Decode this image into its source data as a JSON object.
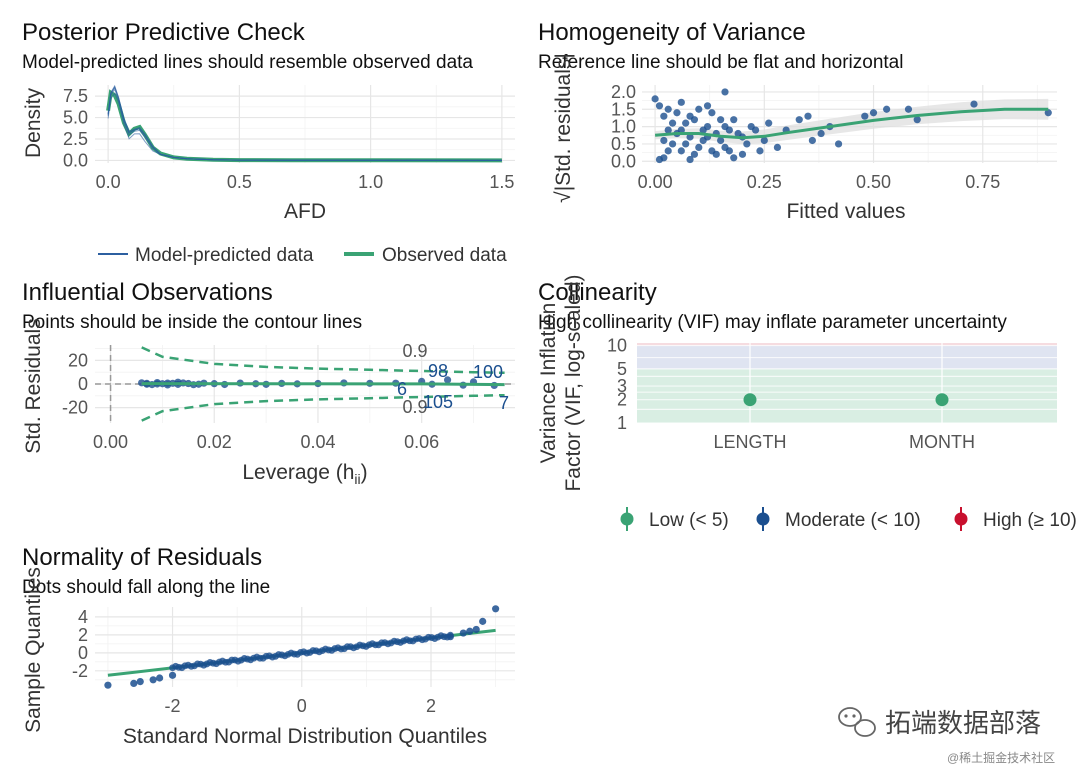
{
  "colors": {
    "green": "#3aa374",
    "blue": "#2c5fa0",
    "dark_blue": "#1b4f8f",
    "red": "#c8102e",
    "low_fill": "#d9eee3",
    "mod_fill": "#dfe4f1",
    "high_fill": "#f6dce0"
  },
  "panels": {
    "ppc": {
      "title": "Posterior Predictive Check",
      "subtitle": "Model-predicted lines should resemble observed data",
      "xlabel": "AFD",
      "ylabel": "Density",
      "xticks": [
        "0.0",
        "0.5",
        "1.0",
        "1.5"
      ],
      "yticks": [
        "0.0",
        "2.5",
        "5.0",
        "7.5"
      ],
      "legend": [
        "Model-predicted data",
        "Observed data"
      ]
    },
    "hov": {
      "title": "Homogeneity of Variance",
      "subtitle": "Reference line should be flat and horizontal",
      "xlabel": "Fitted values",
      "ylabel": "√|Std. residuals|",
      "xticks": [
        "0.00",
        "0.25",
        "0.50",
        "0.75"
      ],
      "yticks": [
        "0.0",
        "0.5",
        "1.0",
        "1.5",
        "2.0"
      ]
    },
    "infl": {
      "title": "Influential Observations",
      "subtitle": "Points should be inside the contour lines",
      "xlabel": "Leverage (hii)",
      "xlabel_main": "Leverage (h",
      "xlabel_sub": "ii",
      "xlabel_close": ")",
      "ylabel": "Std. Residuals",
      "xticks": [
        "0.00",
        "0.02",
        "0.04",
        "0.06"
      ],
      "yticks": [
        "-20",
        "0",
        "20"
      ],
      "contour_label_top": "0.9",
      "contour_label_bottom": "0.9",
      "point_labels": [
        "98",
        "100",
        "6",
        "105",
        "7"
      ]
    },
    "coll": {
      "title": "Collinearity",
      "subtitle": "High collinearity (VIF) may inflate parameter uncertainty",
      "ylabel_line1": "Variance Inflation",
      "ylabel_line2": "Factor (VIF, log-scaled)",
      "xticks": [
        "LENGTH",
        "MONTH"
      ],
      "yticks": [
        "1",
        "2",
        "3",
        "5",
        "10"
      ],
      "legend": [
        "Low (< 5)",
        "Moderate (< 10)",
        "High (≥ 10)"
      ]
    },
    "norm": {
      "title": "Normality of Residuals",
      "subtitle": "Dots should fall along the line",
      "xlabel": "Standard Normal Distribution Quantiles",
      "ylabel": "Sample Quantiles",
      "xticks": [
        "-2",
        "0",
        "2"
      ],
      "yticks": [
        "-2",
        "0",
        "2",
        "4"
      ]
    }
  },
  "watermark": {
    "main": "拓端数据部落",
    "sub": "@稀土掘金技术社区"
  },
  "chart_data": [
    {
      "type": "line",
      "title": "Posterior Predictive Check",
      "xlabel": "AFD",
      "ylabel": "Density",
      "xlim": [
        -0.05,
        1.55
      ],
      "ylim": [
        -0.3,
        8.8
      ],
      "series": [
        {
          "name": "Model-predicted data",
          "x": [
            0.0,
            0.01,
            0.025,
            0.04,
            0.06,
            0.08,
            0.1,
            0.12,
            0.14,
            0.17,
            0.2,
            0.25,
            0.3,
            0.4,
            0.5,
            0.7,
            1.0,
            1.5
          ],
          "y": [
            5.2,
            7.6,
            8.3,
            7.1,
            4.6,
            3.0,
            3.4,
            3.5,
            2.7,
            1.4,
            0.7,
            0.35,
            0.2,
            0.08,
            0.04,
            0.02,
            0.01,
            0.0
          ]
        },
        {
          "name": "Observed data",
          "x": [
            0.0,
            0.01,
            0.025,
            0.04,
            0.06,
            0.08,
            0.1,
            0.12,
            0.14,
            0.17,
            0.2,
            0.25,
            0.3,
            0.4,
            0.5,
            0.7,
            1.0,
            1.5
          ],
          "y": [
            5.8,
            7.9,
            7.6,
            6.6,
            4.4,
            3.1,
            3.7,
            3.9,
            3.0,
            1.5,
            0.8,
            0.35,
            0.2,
            0.08,
            0.04,
            0.02,
            0.01,
            0.0
          ]
        }
      ]
    },
    {
      "type": "scatter",
      "title": "Homogeneity of Variance",
      "xlabel": "Fitted values",
      "ylabel": "√|Std. residuals|",
      "xlim": [
        -0.03,
        0.92
      ],
      "ylim": [
        -0.05,
        2.2
      ],
      "points": [
        [
          0.0,
          1.8
        ],
        [
          0.01,
          1.6
        ],
        [
          0.02,
          1.3
        ],
        [
          0.02,
          0.1
        ],
        [
          0.03,
          0.9
        ],
        [
          0.04,
          0.5
        ],
        [
          0.05,
          1.4
        ],
        [
          0.06,
          0.3
        ],
        [
          0.07,
          1.1
        ],
        [
          0.08,
          0.7
        ],
        [
          0.09,
          0.2
        ],
        [
          0.1,
          1.5
        ],
        [
          0.11,
          0.6
        ],
        [
          0.12,
          1.0
        ],
        [
          0.13,
          0.3
        ],
        [
          0.14,
          0.8
        ],
        [
          0.15,
          1.2
        ],
        [
          0.16,
          0.4
        ],
        [
          0.17,
          0.9
        ],
        [
          0.18,
          0.1
        ],
        [
          0.02,
          0.6
        ],
        [
          0.04,
          1.1
        ],
        [
          0.06,
          0.9
        ],
        [
          0.08,
          1.3
        ],
        [
          0.1,
          0.4
        ],
        [
          0.12,
          0.7
        ],
        [
          0.14,
          0.2
        ],
        [
          0.16,
          1.0
        ],
        [
          0.03,
          0.3
        ],
        [
          0.05,
          0.8
        ],
        [
          0.07,
          0.5
        ],
        [
          0.09,
          1.2
        ],
        [
          0.11,
          0.9
        ],
        [
          0.13,
          1.4
        ],
        [
          0.15,
          0.6
        ],
        [
          0.17,
          0.3
        ],
        [
          0.19,
          0.8
        ],
        [
          0.2,
          0.7
        ],
        [
          0.21,
          0.5
        ],
        [
          0.22,
          1.0
        ],
        [
          0.24,
          0.3
        ],
        [
          0.26,
          1.1
        ],
        [
          0.28,
          0.4
        ],
        [
          0.3,
          0.9
        ],
        [
          0.33,
          1.2
        ],
        [
          0.35,
          1.3
        ],
        [
          0.36,
          0.6
        ],
        [
          0.38,
          0.8
        ],
        [
          0.4,
          1.0
        ],
        [
          0.42,
          0.5
        ],
        [
          0.48,
          1.3
        ],
        [
          0.5,
          1.4
        ],
        [
          0.53,
          1.5
        ],
        [
          0.58,
          1.5
        ],
        [
          0.6,
          1.2
        ],
        [
          0.73,
          1.65
        ],
        [
          0.9,
          1.4
        ],
        [
          0.16,
          2.0
        ],
        [
          0.01,
          0.05
        ],
        [
          0.03,
          1.5
        ],
        [
          0.06,
          1.7
        ],
        [
          0.08,
          0.05
        ],
        [
          0.12,
          1.6
        ],
        [
          0.18,
          1.2
        ],
        [
          0.2,
          0.2
        ],
        [
          0.23,
          0.9
        ],
        [
          0.25,
          0.6
        ]
      ],
      "smooth": {
        "x": [
          0.0,
          0.05,
          0.1,
          0.15,
          0.2,
          0.25,
          0.3,
          0.4,
          0.5,
          0.6,
          0.7,
          0.8,
          0.9
        ],
        "y": [
          0.75,
          0.8,
          0.8,
          0.72,
          0.68,
          0.72,
          0.82,
          1.0,
          1.18,
          1.32,
          1.43,
          1.5,
          1.5
        ]
      }
    },
    {
      "type": "scatter",
      "title": "Influential Observations",
      "xlabel": "Leverage (hii)",
      "ylabel": "Std. Residuals",
      "xlim": [
        -0.003,
        0.078
      ],
      "ylim": [
        -33,
        33
      ],
      "points": [
        [
          0.006,
          1.0
        ],
        [
          0.007,
          0.5
        ],
        [
          0.008,
          -0.5
        ],
        [
          0.009,
          1.2
        ],
        [
          0.01,
          0.2
        ],
        [
          0.011,
          -0.8
        ],
        [
          0.012,
          0.6
        ],
        [
          0.013,
          -0.3
        ],
        [
          0.014,
          0.9
        ],
        [
          0.015,
          0.4
        ],
        [
          0.016,
          -0.6
        ],
        [
          0.018,
          0.7
        ],
        [
          0.02,
          0.3
        ],
        [
          0.022,
          -0.4
        ],
        [
          0.025,
          0.8
        ],
        [
          0.028,
          0.2
        ],
        [
          0.03,
          -0.3
        ],
        [
          0.033,
          0.5
        ],
        [
          0.036,
          0.1
        ],
        [
          0.04,
          0.4
        ],
        [
          0.045,
          0.9
        ],
        [
          0.05,
          0.6
        ],
        [
          0.055,
          0.7
        ],
        [
          0.06,
          2.2
        ],
        [
          0.062,
          -0.2
        ],
        [
          0.065,
          3.5
        ],
        [
          0.068,
          -1.0
        ],
        [
          0.07,
          1.8
        ],
        [
          0.074,
          -1.2
        ],
        [
          0.007,
          -0.2
        ],
        [
          0.009,
          0.0
        ],
        [
          0.011,
          0.8
        ],
        [
          0.013,
          1.5
        ],
        [
          0.017,
          -0.2
        ]
      ],
      "labeled_points": [
        {
          "label": "98",
          "x": 0.063,
          "y": 3.4
        },
        {
          "label": "100",
          "x": 0.069,
          "y": 3.8
        },
        {
          "label": "6",
          "x": 0.061,
          "y": -2.4
        },
        {
          "label": "105",
          "x": 0.064,
          "y": -6.5
        },
        {
          "label": "7",
          "x": 0.074,
          "y": -7.0
        }
      ],
      "contour": {
        "x": [
          0.006,
          0.01,
          0.02,
          0.03,
          0.04,
          0.05,
          0.06,
          0.07,
          0.076
        ],
        "y_upper": [
          31,
          23,
          17,
          14.5,
          13,
          12,
          11,
          10,
          9.5
        ]
      }
    },
    {
      "type": "dot",
      "title": "Collinearity",
      "ylabel": "Variance Inflation Factor (VIF, log-scaled)",
      "categories": [
        "LENGTH",
        "MONTH"
      ],
      "values": [
        2.0,
        2.0
      ],
      "groups": [
        "Low (< 5)",
        "Low (< 5)"
      ],
      "ylim": [
        1,
        10.8
      ]
    },
    {
      "type": "scatter",
      "title": "Normality of Residuals",
      "xlabel": "Standard Normal Distribution Quantiles",
      "ylabel": "Sample Quantiles",
      "xlim": [
        -3.2,
        3.3
      ],
      "ylim": [
        -3.8,
        5.1
      ],
      "line": {
        "x": [
          -3.0,
          3.0
        ],
        "y": [
          -2.5,
          2.5
        ]
      },
      "tail_points": [
        [
          -3.0,
          -3.6
        ],
        [
          -2.6,
          -3.4
        ],
        [
          -2.5,
          -3.2
        ],
        [
          -2.3,
          -3.0
        ],
        [
          -2.2,
          -2.8
        ],
        [
          -2.0,
          -2.5
        ],
        [
          2.3,
          1.8
        ],
        [
          2.5,
          2.2
        ],
        [
          2.6,
          2.4
        ],
        [
          2.7,
          2.6
        ],
        [
          2.8,
          3.5
        ],
        [
          3.0,
          4.9
        ]
      ]
    }
  ]
}
